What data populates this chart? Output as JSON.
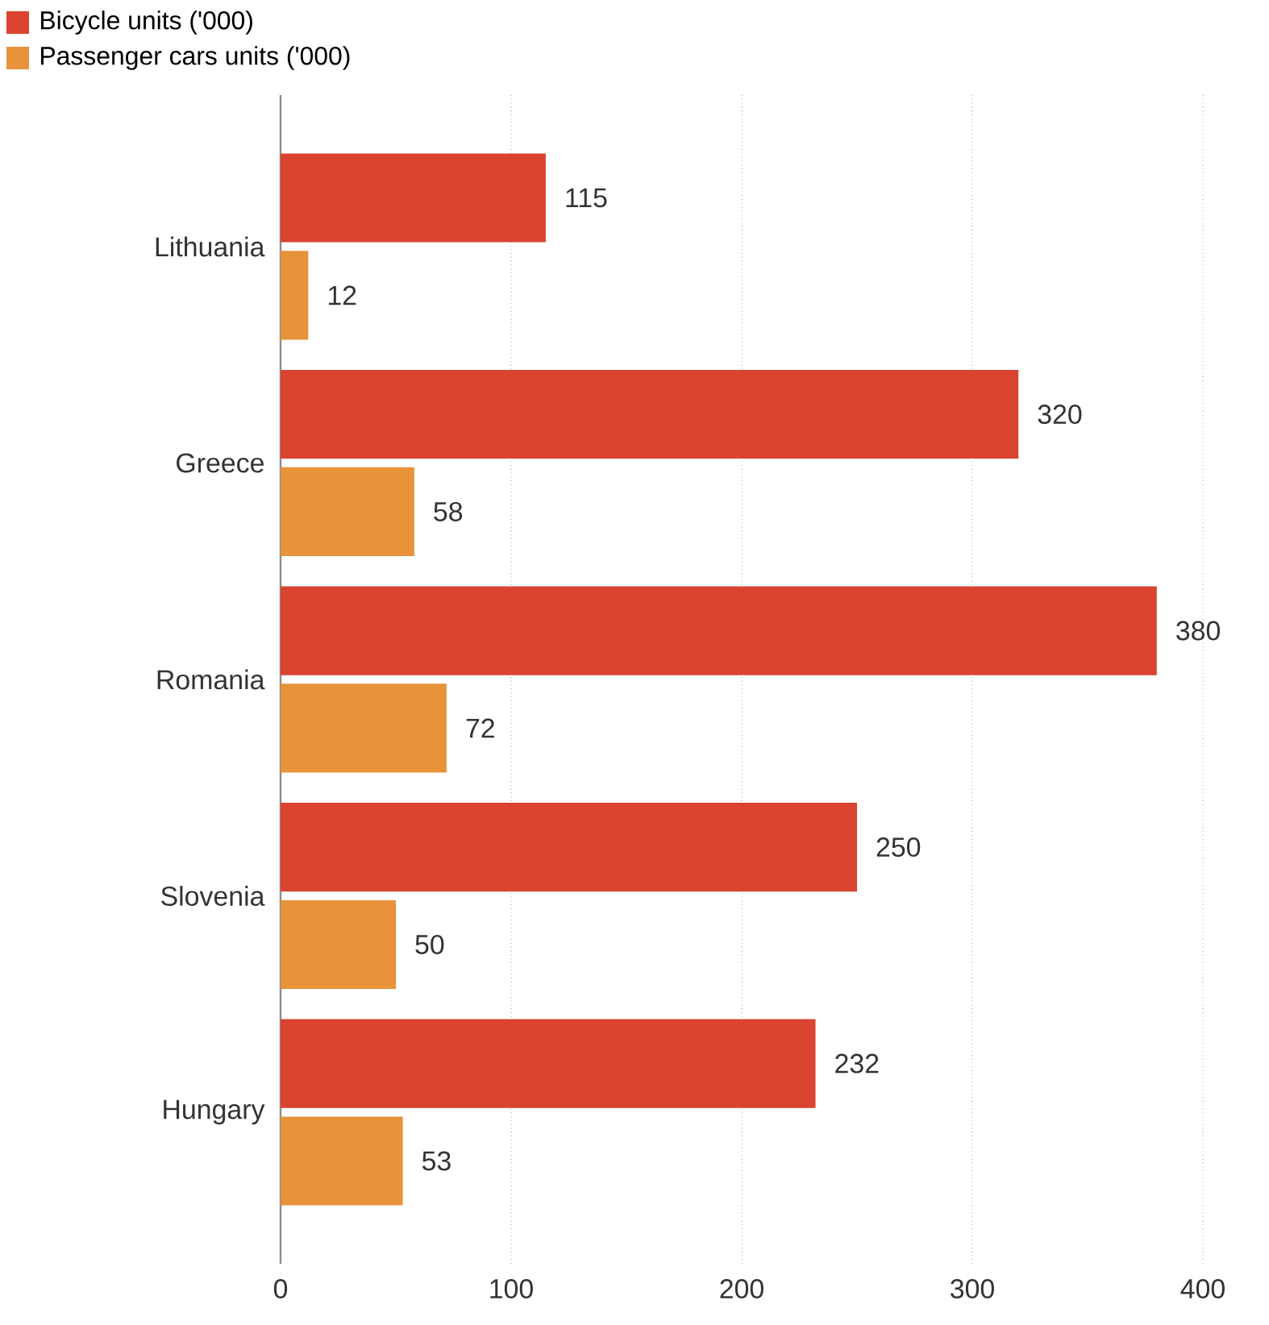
{
  "chart_data": {
    "type": "bar",
    "orientation": "horizontal",
    "categories": [
      "Lithuania",
      "Greece",
      "Romania",
      "Slovenia",
      "Hungary"
    ],
    "series": [
      {
        "name": "Bicycle units ('000)",
        "color": "#d9432f",
        "values": [
          115,
          320,
          380,
          250,
          232
        ]
      },
      {
        "name": "Passenger cars units ('000)",
        "color": "#e8923a",
        "values": [
          12,
          58,
          72,
          50,
          53
        ]
      }
    ],
    "xlim": [
      0,
      400
    ],
    "xticks": [
      0,
      100,
      200,
      300,
      400
    ],
    "grid": "x",
    "legend": "top left",
    "data_labels": true
  }
}
